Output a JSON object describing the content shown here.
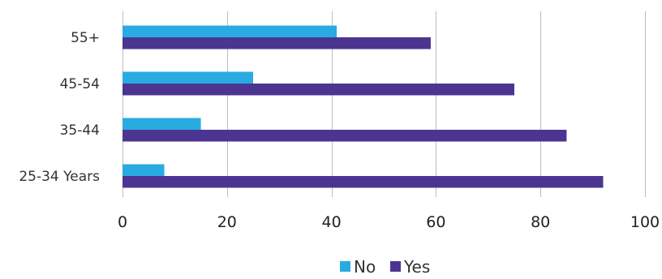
{
  "chart_data": {
    "type": "bar",
    "orientation": "horizontal",
    "categories": [
      "55+",
      "45-54",
      "35-44",
      "25-34 Years"
    ],
    "series": [
      {
        "name": "No",
        "color": "#29abe2",
        "values": [
          41,
          25,
          15,
          8
        ]
      },
      {
        "name": "Yes",
        "color": "#4b3591",
        "values": [
          59,
          75,
          85,
          92
        ]
      }
    ],
    "xlim": [
      0,
      100
    ],
    "xticks": [
      0,
      20,
      40,
      60,
      80,
      100
    ],
    "grid": true,
    "legend": "bottom-center"
  }
}
